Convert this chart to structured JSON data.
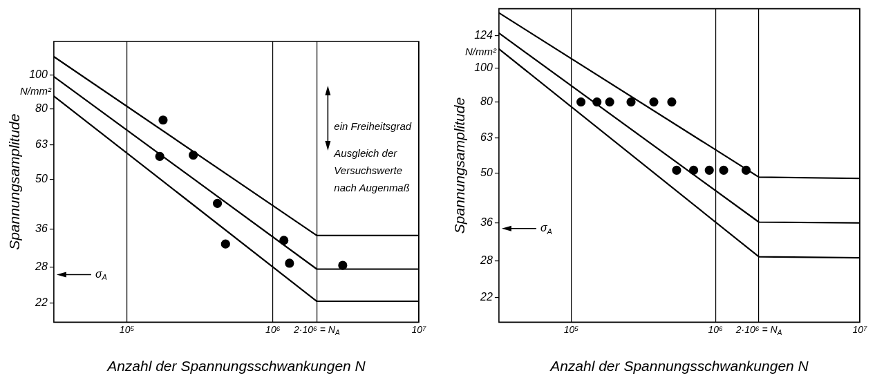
{
  "chart_data": [
    {
      "type": "line",
      "xlabel": "Anzahl der Spannungsschwankungen N",
      "ylabel": "Spannungsamplitude",
      "log": "xy",
      "grid": "x",
      "xlim": [
        31600,
        10000000
      ],
      "ylim": [
        19.4,
        125
      ],
      "xticks": [
        {
          "value": 100000,
          "label": "10⁵"
        },
        {
          "value": 1000000,
          "label": "10⁶"
        },
        {
          "value": 2000000,
          "label": "2·10⁶ = N$_{A}$"
        },
        {
          "value": 10000000,
          "label": "10⁷"
        }
      ],
      "yticks": [
        22,
        28,
        36,
        50,
        63,
        80,
        100
      ],
      "annotations": [
        "N/mm²",
        "ein Freiheitsgrad",
        "Ausgleich der Versuchswerte nach Augenmaß",
        "σ$_{A}$"
      ],
      "series": [
        {
          "type": "line",
          "marker": "none",
          "color": "#000000",
          "x": [
            31600,
            2000000,
            10000000
          ],
          "values": [
            113,
            34.5,
            34.5
          ]
        },
        {
          "type": "line",
          "marker": "none",
          "color": "#000000",
          "x": [
            31600,
            2000000,
            10000000
          ],
          "values": [
            99,
            27.6,
            27.6
          ]
        },
        {
          "type": "line",
          "marker": "none",
          "color": "#000000",
          "x": [
            31600,
            2000000,
            10000000
          ],
          "values": [
            87,
            22.3,
            22.3
          ]
        },
        {
          "type": "scatter",
          "marker": "circle",
          "color": "#000000",
          "x": [
            177000,
            168000,
            285000,
            417000,
            474000,
            1190000,
            1300000,
            3010000
          ],
          "values": [
            74.2,
            58.3,
            58.8,
            42.7,
            32.6,
            33.4,
            28.7,
            28.3
          ]
        }
      ]
    },
    {
      "type": "line",
      "xlabel": "Anzahl der Spannungsschwankungen N",
      "ylabel": "Spannungsamplitude",
      "log": "xy",
      "grid": "x",
      "xlim": [
        31600,
        10000000
      ],
      "ylim": [
        18.7,
        148
      ],
      "xticks": [
        {
          "value": 100000,
          "label": "10⁵"
        },
        {
          "value": 1000000,
          "label": "10⁶"
        },
        {
          "value": 2000000,
          "label": "2·10⁶ = N$_{A}$"
        },
        {
          "value": 10000000,
          "label": "10⁷"
        }
      ],
      "yticks": [
        22,
        28,
        36,
        50,
        63,
        80,
        100,
        124
      ],
      "annotations": [
        "N/mm²",
        "σ$_{A}$"
      ],
      "series": [
        {
          "type": "line",
          "marker": "none",
          "color": "#000000",
          "x": [
            31600,
            2000000,
            10000000
          ],
          "values": [
            144,
            48.7,
            48.3
          ]
        },
        {
          "type": "line",
          "marker": "none",
          "color": "#000000",
          "x": [
            31600,
            2000000,
            10000000
          ],
          "values": [
            126,
            36.2,
            36
          ]
        },
        {
          "type": "line",
          "marker": "none",
          "color": "#000000",
          "x": [
            31600,
            2000000,
            10000000
          ],
          "values": [
            113.5,
            28.8,
            28.6
          ]
        },
        {
          "type": "scatter",
          "marker": "circle",
          "color": "#000000",
          "x": [
            117000,
            151000,
            185000,
            260000,
            374000,
            498000,
            538000,
            706000,
            906000,
            1140000,
            1630000
          ],
          "values": [
            80,
            80,
            80,
            80,
            80,
            80,
            51,
            51,
            51,
            51,
            51
          ]
        }
      ]
    }
  ]
}
